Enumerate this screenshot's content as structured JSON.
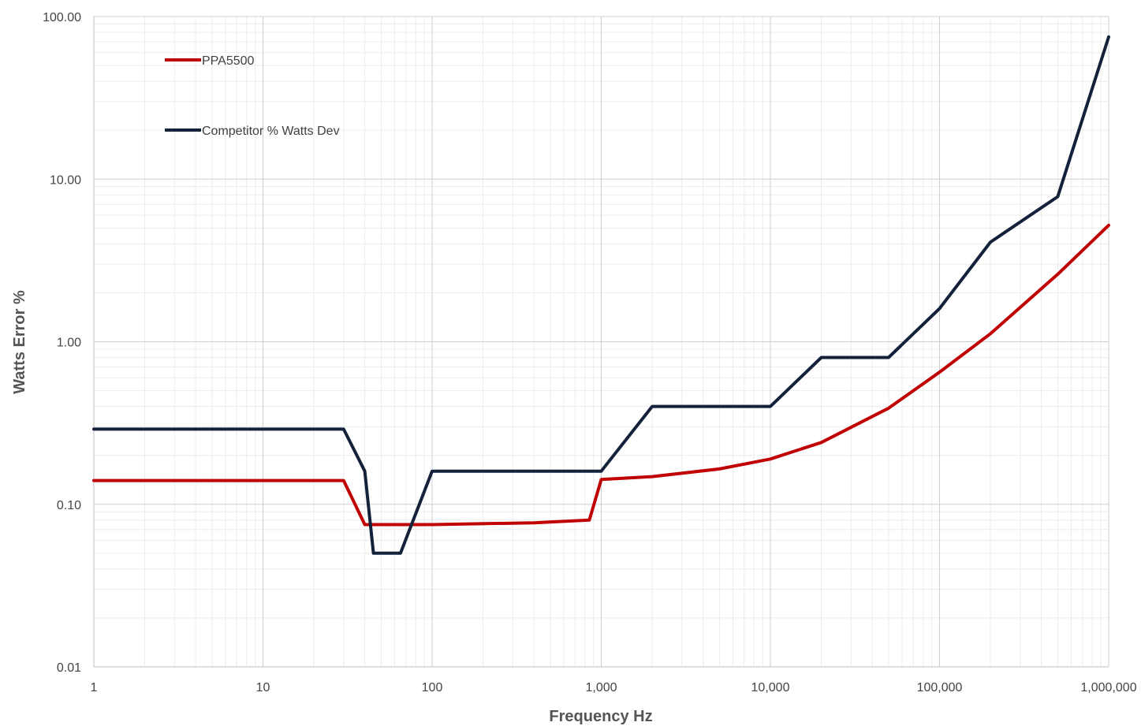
{
  "chart_data": {
    "type": "line",
    "title": "",
    "xlabel": "Frequency Hz",
    "ylabel": "Watts Error %",
    "x_scale": "log",
    "y_scale": "log",
    "xlim": [
      1,
      1000000
    ],
    "ylim": [
      0.01,
      100
    ],
    "grid": true,
    "legend_position": "top-left",
    "x_tick_values": [
      1,
      10,
      100,
      1000,
      10000,
      100000,
      1000000
    ],
    "x_tick_labels": [
      "1",
      "10",
      "100",
      "1,000",
      "10,000",
      "100,000",
      "1,000,000"
    ],
    "y_tick_values": [
      0.01,
      0.1,
      1,
      10,
      100
    ],
    "y_tick_labels": [
      "0.01",
      "0.10",
      "1.00",
      "10.00",
      "100.00"
    ],
    "series": [
      {
        "name": "PPA5500",
        "color": "#c00000",
        "x": [
          1,
          30,
          40,
          100,
          400,
          850,
          1000,
          2000,
          5000,
          10000,
          20000,
          50000,
          100000,
          200000,
          500000,
          1000000
        ],
        "y": [
          0.14,
          0.14,
          0.075,
          0.075,
          0.077,
          0.08,
          0.142,
          0.148,
          0.165,
          0.19,
          0.24,
          0.39,
          0.65,
          1.12,
          2.6,
          5.2
        ]
      },
      {
        "name": "Competitor % Watts Dev",
        "color": "#13223a",
        "x": [
          1,
          30,
          40,
          45,
          65,
          100,
          1000,
          2000,
          10000,
          20000,
          50000,
          100000,
          200000,
          500000,
          1000000
        ],
        "y": [
          0.29,
          0.29,
          0.16,
          0.05,
          0.05,
          0.16,
          0.16,
          0.4,
          0.4,
          0.8,
          0.8,
          1.6,
          4.1,
          7.8,
          75
        ]
      }
    ]
  }
}
